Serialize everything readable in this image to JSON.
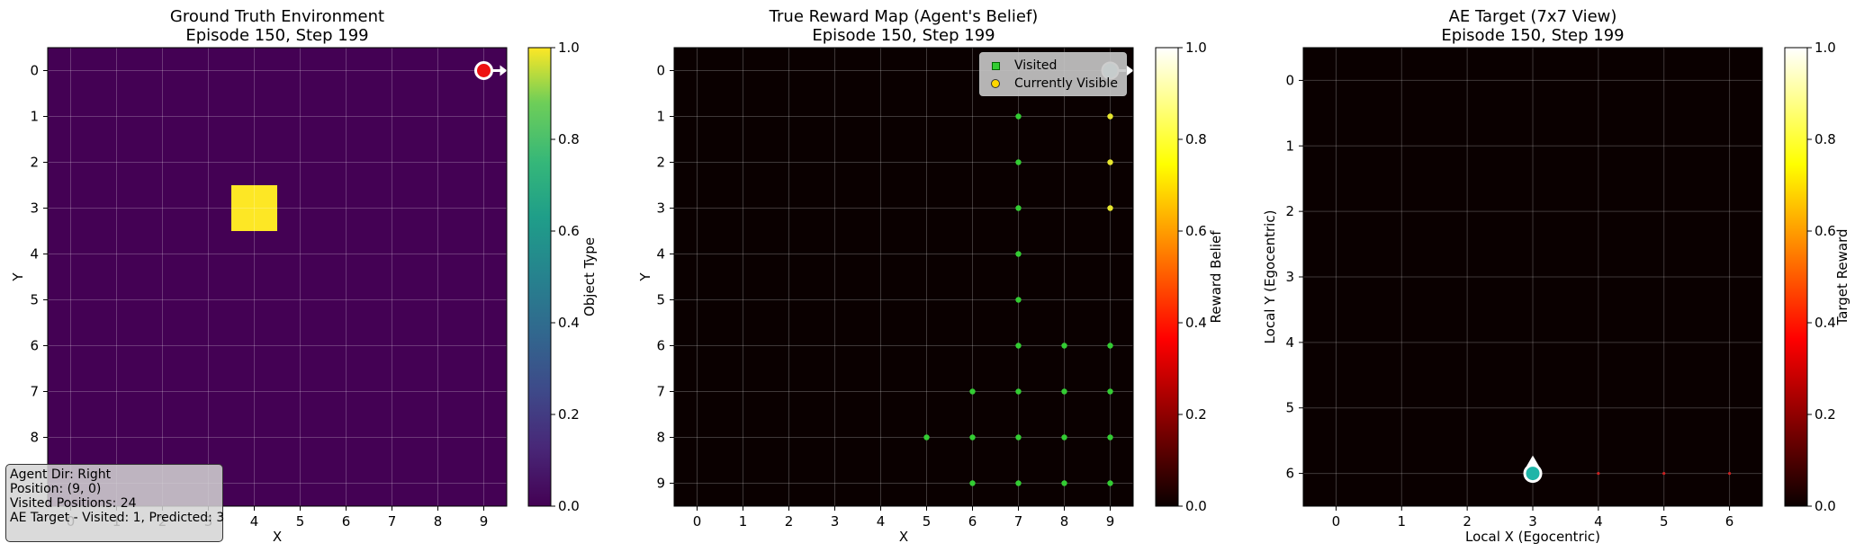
{
  "chart_data": [
    {
      "type": "heatmap",
      "title": "Ground Truth Environment\nEpisode 150, Step 199",
      "xlabel": "X",
      "ylabel": "Y",
      "xticks": [
        "0",
        "1",
        "2",
        "3",
        "4",
        "5",
        "6",
        "7",
        "8",
        "9"
      ],
      "yticks": [
        "0",
        "1",
        "2",
        "3",
        "4",
        "5",
        "6",
        "7",
        "8"
      ],
      "grid_size": [
        10,
        10
      ],
      "background_value": 0.0,
      "cells": [
        {
          "x": 4,
          "y": 3,
          "value": 1.0
        }
      ],
      "agent": {
        "x": 9,
        "y": 0,
        "direction": "Right"
      },
      "colormap": "viridis",
      "colorbar": {
        "label": "Object Type",
        "range": [
          0,
          1
        ],
        "ticks": [
          "0.0",
          "0.2",
          "0.4",
          "0.6",
          "0.8",
          "1.0"
        ]
      },
      "grid": true,
      "info_box": [
        "Agent Dir: Right",
        "Position: (9, 0)",
        "Visited Positions: 24",
        "AE Target - Visited: 1, Predicted: 3"
      ]
    },
    {
      "type": "heatmap",
      "title": "True Reward Map (Agent's Belief)\nEpisode 150, Step 199",
      "xlabel": "X",
      "ylabel": "Y",
      "xticks": [
        "0",
        "1",
        "2",
        "3",
        "4",
        "5",
        "6",
        "7",
        "8",
        "9"
      ],
      "yticks": [
        "0",
        "1",
        "2",
        "3",
        "4",
        "5",
        "6",
        "7",
        "8",
        "9"
      ],
      "grid_size": [
        10,
        10
      ],
      "background_value": 0.0,
      "colormap": "hot",
      "colorbar": {
        "label": "Reward Belief",
        "range": [
          0,
          1
        ],
        "ticks": [
          "0.0",
          "0.2",
          "0.4",
          "0.6",
          "0.8",
          "1.0"
        ]
      },
      "legend": {
        "placement": "top-right",
        "entries": [
          "Visited",
          "Currently Visible"
        ]
      },
      "visited": [
        [
          7,
          1
        ],
        [
          7,
          2
        ],
        [
          7,
          3
        ],
        [
          7,
          4
        ],
        [
          7,
          5
        ],
        [
          7,
          6
        ],
        [
          8,
          6
        ],
        [
          6,
          7
        ],
        [
          7,
          7
        ],
        [
          8,
          7
        ],
        [
          5,
          8
        ],
        [
          6,
          8
        ],
        [
          7,
          8
        ],
        [
          8,
          8
        ],
        [
          6,
          9
        ],
        [
          7,
          9
        ],
        [
          8,
          9
        ]
      ],
      "visible": [
        [
          9,
          1
        ],
        [
          9,
          2
        ],
        [
          9,
          3
        ],
        [
          9,
          6
        ],
        [
          9,
          7
        ],
        [
          9,
          8
        ],
        [
          9,
          9
        ]
      ],
      "visible_colors": [
        "#e6e62e",
        "#e6e62e",
        "#e6e62e",
        "#33cc33",
        "#33cc33",
        "#33cc33",
        "#33cc33"
      ],
      "agent": {
        "x": 9,
        "y": 0,
        "direction": "Right"
      },
      "grid": true
    },
    {
      "type": "heatmap",
      "title": "AE Target (7x7 View)\nEpisode 150, Step 199",
      "xlabel": "Local X (Egocentric)",
      "ylabel": "Local Y (Egocentric)",
      "xticks": [
        "0",
        "1",
        "2",
        "3",
        "4",
        "5",
        "6"
      ],
      "yticks": [
        "0",
        "1",
        "2",
        "3",
        "4",
        "5",
        "6"
      ],
      "grid_size": [
        7,
        7
      ],
      "background_value": 0.0,
      "red_points": [
        [
          4,
          6
        ],
        [
          5,
          6
        ],
        [
          6,
          6
        ]
      ],
      "agent": {
        "x": 3,
        "y": 6,
        "direction": "Up"
      },
      "colormap": "hot",
      "colorbar": {
        "label": "Target Reward",
        "range": [
          0,
          1
        ],
        "ticks": [
          "0.0",
          "0.2",
          "0.4",
          "0.6",
          "0.8",
          "1.0"
        ]
      },
      "grid": true
    }
  ],
  "colors": {
    "viridis_low": "#440154",
    "viridis_high": "#fde725",
    "hot_low": "#0a0000",
    "agent_red": "#ee1111",
    "agent_cyan": "#b9eded",
    "agent_teal": "#1fb5a8",
    "visited_green": "#33cc33"
  }
}
